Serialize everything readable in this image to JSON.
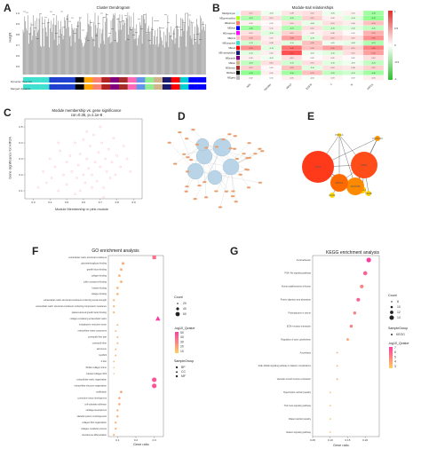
{
  "panels": {
    "A": {
      "label": "A",
      "title": "Cluster Dendrogram",
      "ylabel": "Height",
      "rowlabels": [
        "Dynamic Tree Cut",
        "Merged dynamic"
      ],
      "yticks": [
        "1.0",
        "0.9",
        "0.8",
        "0.7",
        "0.6",
        "0.5"
      ]
    },
    "B": {
      "label": "B",
      "title": "Module-trait relationships",
      "modules": [
        "MEtlightcyan",
        "MEgreenyellow",
        "MEsalmon",
        "MEblue",
        "MEmagenta",
        "MEpink",
        "MEturquoise",
        "MEred",
        "MEmidnightblue",
        "MEpurple",
        "MEtan",
        "MEbrown",
        "MEblack",
        "MEgrey"
      ],
      "traits": [
        "NIH",
        "Gender",
        "WHO",
        "EGFR",
        "T",
        "N",
        "HIF2A"
      ],
      "colorbar": [
        "1",
        "0.5",
        "0",
        "-0.5",
        "-1"
      ]
    },
    "C": {
      "label": "C",
      "title": "Module membership vs. gene significance",
      "subtitle": "cor=0.35, p=1.1e-8",
      "xlabel": "Module Membership in pink module",
      "ylabel": "Gene significance for HIF2A",
      "xticks": [
        "0.3",
        "0.4",
        "0.5",
        "0.6",
        "0.7",
        "0.8",
        "0.9"
      ],
      "yticks": [
        "0.1",
        "0.2",
        "0.3",
        "0.4",
        "0.5"
      ]
    },
    "D": {
      "label": "D"
    },
    "E": {
      "label": "E",
      "nodes": [
        "PRKCA",
        "CACNA1C",
        "ACTN2",
        "FDX1",
        "PDE1A",
        "LDHB",
        "PDGFRB",
        "PRKG1",
        "FBN1",
        "EGR1"
      ]
    },
    "F": {
      "label": "F",
      "title": "GO enrichment analysis",
      "xlabel": "Gene ratio",
      "xticks": [
        "0.1",
        "0.2",
        "0.3"
      ],
      "terms": [
        "extracellular matrix structural constituent",
        "glycosaminoglycan binding",
        "growth factor binding",
        "collagen binding",
        "sulfur compound binding",
        "heparin binding",
        "collagen binding",
        "extracellular matrix structural constituent conferring tensile strength",
        "extracellular matrix structural constituent conferring compression resistance",
        "platelet-derived growth factor binding",
        "collagen-containing extracellular matrix",
        "endoplasmic reticulum lumen",
        "extracellular matrix component",
        "contractile fiber part",
        "contractile fiber",
        "sarcomere",
        "myofibril",
        "Z disc",
        "fibrillar collagen trimer",
        "banded collagen fibril",
        "extracellular matrix organization",
        "extracellular structure organization",
        "ossification",
        "connective tissue development",
        "cell-substrate adhesion",
        "cartilage development",
        "skeletal system morphogenesis",
        "collagen fibril organization",
        "collagen metabolic process",
        "chondrocyte differentiation"
      ],
      "legend": {
        "count_title": "Count",
        "counts": [
          "20",
          "40",
          "60"
        ],
        "q_title": "-log10_Qvalue",
        "q_vals": [
          "50",
          "40",
          "30",
          "20",
          "10"
        ],
        "group_title": "SampleGroup",
        "groups": [
          "BP",
          "CC",
          "MF"
        ]
      }
    },
    "G": {
      "label": "G",
      "title": "KEGG enrichment analysis",
      "xlabel": "Gene ratio",
      "xticks": [
        "0.05",
        "0.10",
        "0.15",
        "0.20"
      ],
      "terms": [
        "Focal adhesion",
        "PI3K–Akt signaling pathway",
        "Human papillomavirus infection",
        "Protein digestion and absorption",
        "Proteoglycans in cancer",
        "ECM–receptor interaction",
        "Regulation of actin cytoskeleton",
        "Amoebiasis",
        "AGE–RAGE signaling pathway in diabetic complications",
        "Vascular smooth muscle contraction",
        "Hypertrophic cardiomyopathy",
        "TGF–beta signaling pathway",
        "Dilated cardiomyopathy",
        "Relaxin signaling pathway"
      ],
      "legend": {
        "count_title": "Count",
        "counts": [
          "8",
          "10",
          "12",
          "14"
        ],
        "group_title": "SampleGroup",
        "groups": [
          "KEGG"
        ],
        "q_title": "-log10_Qvalue",
        "q_vals": [
          "7",
          "6",
          "5",
          "4",
          "3"
        ]
      }
    }
  },
  "chart_data": [
    {
      "type": "heatmap",
      "panel": "B",
      "title": "Module-trait relationships",
      "rows": [
        "MEtlightcyan",
        "MEgreenyellow",
        "MEsalmon",
        "MEblue",
        "MEmagenta",
        "MEpink",
        "MEturquoise",
        "MEred",
        "MEmidnightblue",
        "MEpurple",
        "MEtan",
        "MEbrown",
        "MEblack",
        "MEgrey"
      ],
      "cols": [
        "NIH",
        "Gender",
        "WHO",
        "EGFR",
        "T",
        "N",
        "HIF2A"
      ],
      "values": [
        [
          0.12,
          -0.05,
          0.08,
          0.1,
          -0.06,
          0.04,
          -0.3
        ],
        [
          -0.25,
          0.1,
          -0.2,
          0.15,
          0.05,
          -0.1,
          -0.35
        ],
        [
          0.05,
          0.02,
          0.1,
          -0.08,
          0.1,
          0.06,
          0.2
        ],
        [
          -0.3,
          0.05,
          -0.25,
          0.1,
          -0.15,
          -0.1,
          -0.2
        ],
        [
          0.1,
          -0.1,
          0.15,
          0.05,
          0.08,
          0.02,
          0.25
        ],
        [
          0.2,
          0.05,
          0.3,
          -0.1,
          0.15,
          0.1,
          0.35
        ],
        [
          -0.15,
          0.08,
          -0.1,
          0.2,
          -0.05,
          -0.08,
          -0.25
        ],
        [
          0.35,
          -0.1,
          0.45,
          0.2,
          0.3,
          0.15,
          0.4
        ],
        [
          -0.1,
          0.05,
          0.55,
          -0.05,
          -0.1,
          0.1,
          0.3
        ],
        [
          0.05,
          -0.05,
          0.1,
          0.02,
          0.05,
          0.02,
          0.1
        ],
        [
          -0.2,
          0.1,
          -0.15,
          0.1,
          -0.1,
          -0.05,
          -0.2
        ],
        [
          0.15,
          0.02,
          0.2,
          -0.1,
          0.1,
          0.08,
          0.15
        ],
        [
          -0.35,
          0.05,
          -0.3,
          0.2,
          -0.2,
          -0.15,
          -0.3
        ],
        [
          0.02,
          0.0,
          0.05,
          -0.02,
          0.03,
          0.0,
          0.05
        ]
      ]
    },
    {
      "type": "scatter",
      "panel": "C",
      "xlim": [
        0.25,
        0.95
      ],
      "ylim": [
        0.05,
        0.55
      ],
      "x": [
        0.33,
        0.36,
        0.38,
        0.4,
        0.41,
        0.43,
        0.45,
        0.46,
        0.48,
        0.5,
        0.5,
        0.52,
        0.53,
        0.55,
        0.56,
        0.57,
        0.58,
        0.6,
        0.6,
        0.61,
        0.62,
        0.63,
        0.64,
        0.65,
        0.66,
        0.67,
        0.68,
        0.69,
        0.7,
        0.71,
        0.72,
        0.73,
        0.74,
        0.75,
        0.76,
        0.77,
        0.78,
        0.79,
        0.8,
        0.82,
        0.84,
        0.86,
        0.88,
        0.7,
        0.65,
        0.55,
        0.45,
        0.58,
        0.62,
        0.72
      ],
      "y": [
        0.12,
        0.22,
        0.15,
        0.3,
        0.18,
        0.25,
        0.1,
        0.35,
        0.2,
        0.28,
        0.14,
        0.32,
        0.22,
        0.4,
        0.18,
        0.26,
        0.33,
        0.2,
        0.42,
        0.15,
        0.3,
        0.24,
        0.38,
        0.2,
        0.45,
        0.28,
        0.16,
        0.34,
        0.25,
        0.4,
        0.12,
        0.3,
        0.22,
        0.36,
        0.18,
        0.28,
        0.43,
        0.2,
        0.32,
        0.25,
        0.38,
        0.3,
        0.22,
        0.5,
        0.12,
        0.08,
        0.4,
        0.1,
        0.47,
        0.06
      ]
    },
    {
      "type": "scatter",
      "panel": "F",
      "title": "GO enrichment analysis",
      "xlabel": "Gene ratio",
      "xlim": [
        0.05,
        0.35
      ],
      "categories": [
        "extracellular matrix structural constituent",
        "glycosaminoglycan binding",
        "growth factor binding",
        "collagen binding",
        "sulfur compound binding",
        "heparin binding",
        "collagen binding",
        "extracellular matrix structural constituent conferring tensile strength",
        "extracellular matrix structural constituent conferring compression resistance",
        "platelet-derived growth factor binding",
        "collagen-containing extracellular matrix",
        "endoplasmic reticulum lumen",
        "extracellular matrix component",
        "contractile fiber part",
        "contractile fiber",
        "sarcomere",
        "myofibril",
        "Z disc",
        "fibrillar collagen trimer",
        "banded collagen fibril",
        "extracellular matrix organization",
        "extracellular structure organization",
        "ossification",
        "connective tissue development",
        "cell-substrate adhesion",
        "cartilage development",
        "skeletal system morphogenesis",
        "collagen fibril organization",
        "collagen metabolic process",
        "chondrocyte differentiation"
      ],
      "gene_ratio": [
        0.3,
        0.13,
        0.12,
        0.11,
        0.12,
        0.1,
        0.1,
        0.08,
        0.08,
        0.08,
        0.32,
        0.1,
        0.09,
        0.1,
        0.1,
        0.09,
        0.09,
        0.08,
        0.08,
        0.08,
        0.3,
        0.3,
        0.12,
        0.11,
        0.11,
        0.1,
        0.1,
        0.09,
        0.09,
        0.08
      ],
      "count": [
        40,
        20,
        18,
        16,
        18,
        15,
        15,
        10,
        10,
        10,
        60,
        18,
        16,
        18,
        18,
        16,
        16,
        14,
        10,
        10,
        55,
        55,
        20,
        18,
        18,
        16,
        16,
        14,
        14,
        12
      ],
      "group": [
        "MF",
        "MF",
        "MF",
        "MF",
        "MF",
        "MF",
        "MF",
        "MF",
        "MF",
        "MF",
        "CC",
        "CC",
        "CC",
        "CC",
        "CC",
        "CC",
        "CC",
        "CC",
        "CC",
        "CC",
        "BP",
        "BP",
        "BP",
        "BP",
        "BP",
        "BP",
        "BP",
        "BP",
        "BP",
        "BP"
      ],
      "qvalue": [
        35,
        12,
        12,
        10,
        10,
        9,
        9,
        8,
        8,
        8,
        55,
        10,
        10,
        12,
        12,
        11,
        11,
        9,
        8,
        8,
        45,
        45,
        14,
        12,
        12,
        11,
        11,
        10,
        10,
        9
      ]
    },
    {
      "type": "scatter",
      "panel": "G",
      "title": "KEGG enrichment analysis",
      "xlabel": "Gene ratio",
      "xlim": [
        0.05,
        0.24
      ],
      "categories": [
        "Focal adhesion",
        "PI3K–Akt signaling pathway",
        "Human papillomavirus infection",
        "Protein digestion and absorption",
        "Proteoglycans in cancer",
        "ECM–receptor interaction",
        "Regulation of actin cytoskeleton",
        "Amoebiasis",
        "AGE–RAGE signaling pathway in diabetic complications",
        "Vascular smooth muscle contraction",
        "Hypertrophic cardiomyopathy",
        "TGF–beta signaling pathway",
        "Dilated cardiomyopathy",
        "Relaxin signaling pathway"
      ],
      "gene_ratio": [
        0.21,
        0.2,
        0.19,
        0.18,
        0.17,
        0.16,
        0.15,
        0.12,
        0.12,
        0.12,
        0.1,
        0.1,
        0.1,
        0.1
      ],
      "count": [
        14,
        13,
        12,
        12,
        11,
        11,
        10,
        8,
        8,
        8,
        8,
        8,
        8,
        8
      ],
      "qvalue": [
        7,
        6,
        5,
        6,
        5,
        5,
        4,
        4,
        4,
        4,
        3,
        3,
        3,
        3
      ]
    }
  ]
}
